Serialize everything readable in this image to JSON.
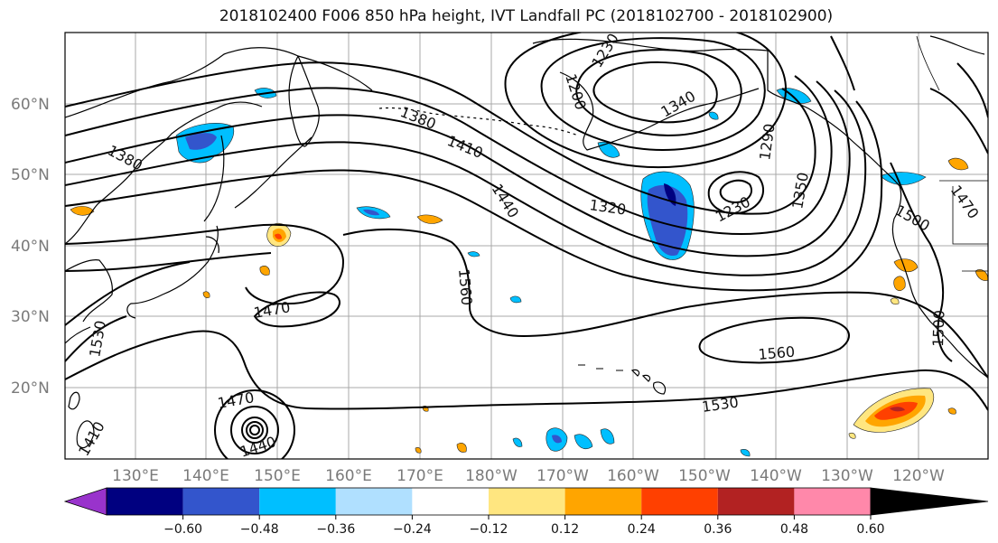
{
  "map": {
    "title": "2018102400 F006 850 hPa height, IVT Landfall PC (2018102700 - 2018102900)",
    "lat_labels": [
      "60°N",
      "50°N",
      "40°N",
      "30°N",
      "20°N"
    ],
    "lon_labels": [
      "130°E",
      "140°E",
      "150°E",
      "160°E",
      "170°E",
      "180°W",
      "170°W",
      "160°W",
      "150°W",
      "140°W",
      "130°W",
      "120°W"
    ],
    "contour_labels": [
      "1380",
      "1380",
      "1410",
      "1440",
      "1320",
      "1290",
      "1350",
      "1200",
      "1230",
      "1340",
      "1230",
      "1500",
      "1470",
      "1560",
      "1560",
      "1470",
      "1530",
      "1530",
      "1470",
      "1440",
      "1500",
      "1410"
    ],
    "colorbar": {
      "tick_labels": [
        "−0.60",
        "−0.48",
        "−0.36",
        "−0.24",
        "−0.12",
        "0.12",
        "0.24",
        "0.36",
        "0.48",
        "0.60"
      ],
      "colors": [
        "#9933cc",
        "#000080",
        "#3355cc",
        "#00bfff",
        "#b0e0ff",
        "#ffffff",
        "#ffe680",
        "#ffa500",
        "#ff4000",
        "#b22222",
        "#ff88aa"
      ]
    }
  }
}
